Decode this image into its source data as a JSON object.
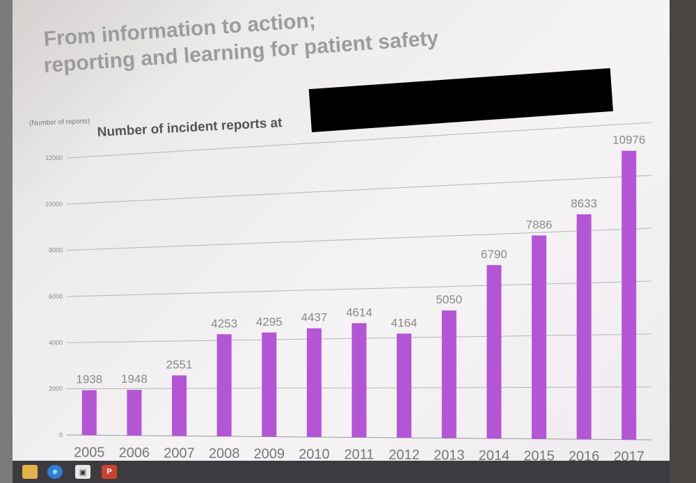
{
  "slide": {
    "title_line1": "From information to action;",
    "title_line2": "reporting and learning for patient safety"
  },
  "chart_data": {
    "type": "bar",
    "title": "Number of incident reports at",
    "ylabel": "(Number of reports)",
    "xlabel": "",
    "categories": [
      "2005",
      "2006",
      "2007",
      "2008",
      "2009",
      "2010",
      "2011",
      "2012",
      "2013",
      "2014",
      "2015",
      "2016",
      "2017"
    ],
    "values": [
      1938,
      1948,
      2551,
      4253,
      4295,
      4437,
      4614,
      4164,
      5050,
      6790,
      7886,
      8633,
      10976
    ],
    "y_ticks": [
      "0",
      "2000",
      "4000",
      "6000",
      "8000",
      "10000",
      "12000"
    ],
    "ylim": [
      0,
      12000
    ],
    "grid": true,
    "bar_color": "#b455d6",
    "redaction_color": "#000000"
  },
  "taskbar": {
    "icons": [
      "folder-icon",
      "internet-explorer-icon",
      "store-icon",
      "powerpoint-icon"
    ],
    "ppt_label": "P"
  }
}
